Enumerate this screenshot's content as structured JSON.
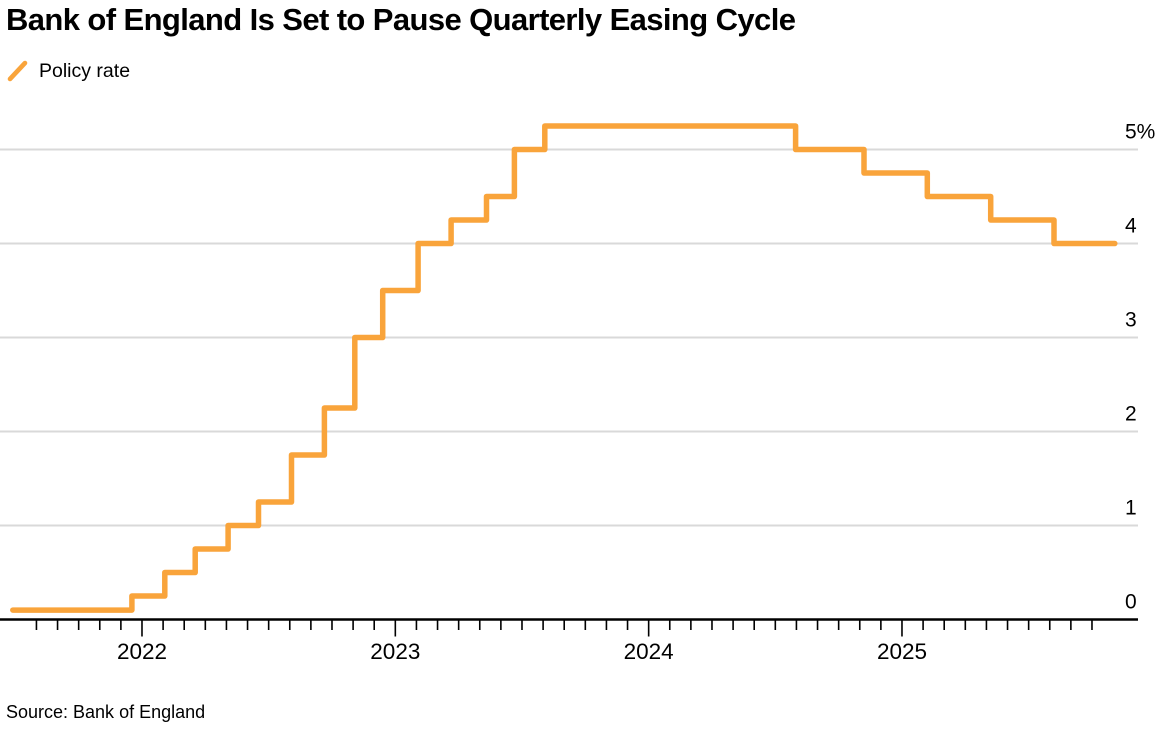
{
  "header": {
    "title": "Bank of England Is Set to Pause Quarterly Easing Cycle"
  },
  "legend": {
    "label": "Policy rate",
    "color": "#F9A43B"
  },
  "source": {
    "label": "Source: Bank of England"
  },
  "chart_data": {
    "type": "line",
    "subtype": "step-after",
    "title": "Bank of England Is Set to Pause Quarterly Easing Cycle",
    "legend_position": "top-left",
    "grid": "horizontal-only",
    "colors": {
      "line": "#F9A43B",
      "gridline": "#D9D9D9",
      "axis": "#000000"
    },
    "series": [
      {
        "name": "Policy rate",
        "color": "#F9A43B",
        "points_decimal_year_vs_percent": [
          [
            2021.49,
            0.1
          ],
          [
            2021.96,
            0.25
          ],
          [
            2022.09,
            0.5
          ],
          [
            2022.21,
            0.75
          ],
          [
            2022.34,
            1.0
          ],
          [
            2022.46,
            1.25
          ],
          [
            2022.59,
            1.75
          ],
          [
            2022.72,
            2.25
          ],
          [
            2022.84,
            3.0
          ],
          [
            2022.95,
            3.5
          ],
          [
            2023.09,
            4.0
          ],
          [
            2023.22,
            4.25
          ],
          [
            2023.36,
            4.5
          ],
          [
            2023.47,
            5.0
          ],
          [
            2023.59,
            5.25
          ],
          [
            2024.58,
            5.0
          ],
          [
            2024.85,
            4.75
          ],
          [
            2025.1,
            4.5
          ],
          [
            2025.35,
            4.25
          ],
          [
            2025.6,
            4.0
          ]
        ],
        "x_end_decimal_year": 2025.84
      }
    ],
    "x_axis": {
      "label": "",
      "year_tick_labels": [
        "2022",
        "2023",
        "2024",
        "2025"
      ],
      "year_tick_values": [
        2022,
        2023,
        2024,
        2025
      ],
      "minor_tick_interval": "1 month",
      "minor_ticks_start_decimal_year": 2021.5833,
      "minor_ticks_count": 51
    },
    "y_axis": {
      "label": "",
      "side": "right",
      "range": [
        0,
        5.5
      ],
      "gridline_values": [
        1,
        2,
        3,
        4,
        5
      ],
      "ticks": [
        {
          "value": 0,
          "label": "0"
        },
        {
          "value": 1,
          "label": "1"
        },
        {
          "value": 2,
          "label": "2"
        },
        {
          "value": 3,
          "label": "3"
        },
        {
          "value": 4,
          "label": "4"
        },
        {
          "value": 5,
          "label": "5%"
        }
      ]
    }
  }
}
